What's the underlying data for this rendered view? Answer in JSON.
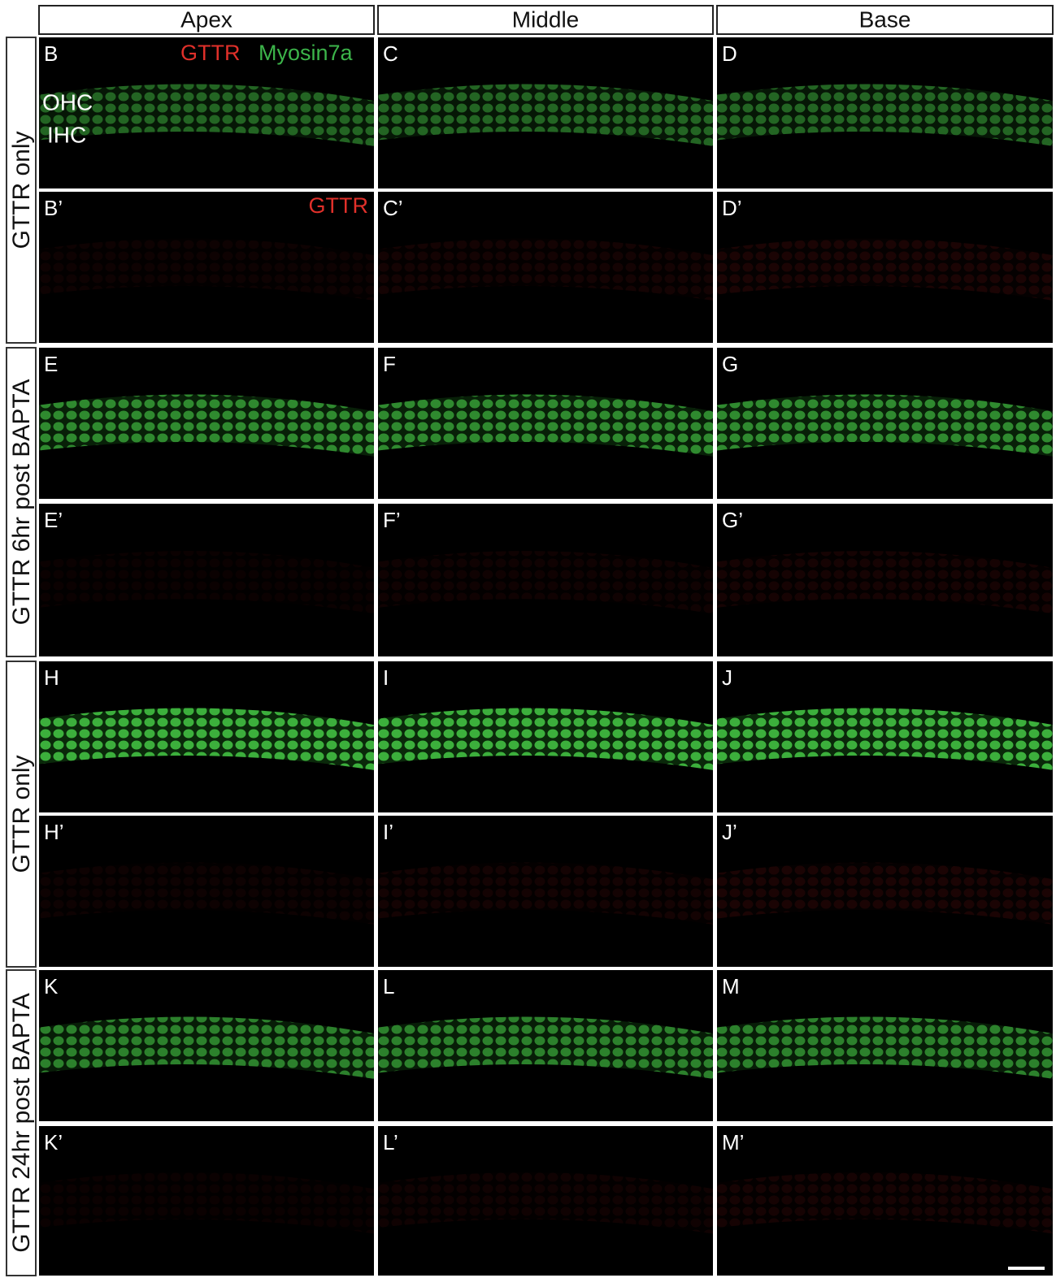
{
  "columns": [
    "Apex",
    "Middle",
    "Base"
  ],
  "groups": [
    {
      "label": "GTTR only"
    },
    {
      "label": "GTTR 6hr post BAPTA"
    },
    {
      "label": "GTTR only"
    },
    {
      "label": "GTTR 24hr post BAPTA"
    }
  ],
  "panels": [
    [
      "B",
      "C",
      "D"
    ],
    [
      "B’",
      "C’",
      "D’"
    ],
    [
      "E",
      "F",
      "G"
    ],
    [
      "E’",
      "F’",
      "G’"
    ],
    [
      "H",
      "I",
      "J"
    ],
    [
      "H’",
      "I’",
      "J’"
    ],
    [
      "K",
      "L",
      "M"
    ],
    [
      "K’",
      "L’",
      "M’"
    ]
  ],
  "annotations": {
    "stain_red": "GTTR",
    "stain_green": "Myosin7a",
    "ohc": "OHC",
    "ihc": "IHC",
    "red_only": "GTTR"
  }
}
